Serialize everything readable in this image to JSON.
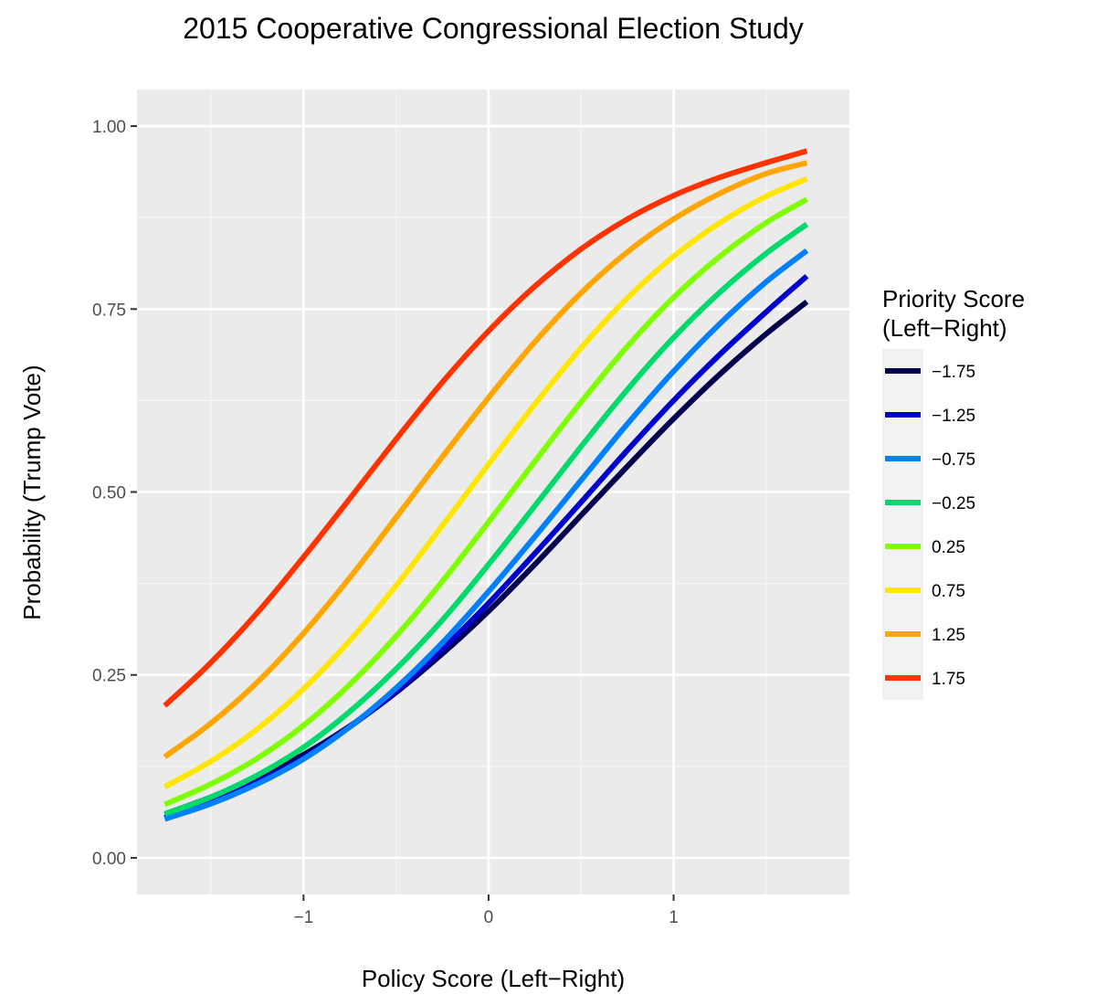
{
  "chart_data": {
    "type": "line",
    "title": "2015 Cooperative Congressional Election Study",
    "xlabel": "Policy Score (Left−Right)",
    "ylabel": "Probability (Trump Vote)",
    "xlim": [
      -1.9,
      1.95
    ],
    "ylim": [
      -0.05,
      1.05
    ],
    "x_ticks": [
      -1,
      0,
      1
    ],
    "x_tick_labels": [
      "−1",
      "0",
      "1"
    ],
    "y_ticks": [
      0,
      0.25,
      0.5,
      0.75,
      1.0
    ],
    "y_tick_labels": [
      "0.00",
      "0.25",
      "0.50",
      "0.75",
      "1.00"
    ],
    "grid": true,
    "legend": {
      "title": [
        "Priority Score",
        "(Left−Right)"
      ],
      "position": "right"
    },
    "x": [
      -1.75,
      -1.5,
      -1.25,
      -1.0,
      -0.75,
      -0.5,
      -0.25,
      0.0,
      0.25,
      0.5,
      0.75,
      1.0,
      1.25,
      1.5,
      1.72
    ],
    "series": [
      {
        "name": "−1.75",
        "color": "#00004d",
        "values": [
          0.06,
          0.083,
          0.11,
          0.141,
          0.18,
          0.226,
          0.279,
          0.337,
          0.401,
          0.468,
          0.535,
          0.6,
          0.661,
          0.716,
          0.76
        ]
      },
      {
        "name": "−1.25",
        "color": "#0000cc",
        "values": [
          0.055,
          0.077,
          0.104,
          0.137,
          0.179,
          0.228,
          0.285,
          0.348,
          0.416,
          0.486,
          0.557,
          0.625,
          0.688,
          0.746,
          0.795
        ]
      },
      {
        "name": "−0.75",
        "color": "#0080ff",
        "values": [
          0.053,
          0.074,
          0.101,
          0.135,
          0.179,
          0.232,
          0.294,
          0.364,
          0.439,
          0.516,
          0.593,
          0.665,
          0.73,
          0.787,
          0.83
        ]
      },
      {
        "name": "−0.25",
        "color": "#00d96b",
        "values": [
          0.06,
          0.083,
          0.113,
          0.151,
          0.2,
          0.258,
          0.325,
          0.401,
          0.481,
          0.562,
          0.64,
          0.711,
          0.773,
          0.826,
          0.866
        ]
      },
      {
        "name": "0.25",
        "color": "#80ff00",
        "values": [
          0.073,
          0.101,
          0.136,
          0.181,
          0.237,
          0.303,
          0.378,
          0.459,
          0.542,
          0.623,
          0.699,
          0.766,
          0.822,
          0.868,
          0.9
        ]
      },
      {
        "name": "0.75",
        "color": "#ffe600",
        "values": [
          0.097,
          0.132,
          0.176,
          0.231,
          0.297,
          0.372,
          0.454,
          0.538,
          0.62,
          0.697,
          0.765,
          0.822,
          0.868,
          0.904,
          0.928
        ]
      },
      {
        "name": "1.25",
        "color": "#ffa600",
        "values": [
          0.138,
          0.184,
          0.24,
          0.307,
          0.383,
          0.465,
          0.548,
          0.629,
          0.705,
          0.772,
          0.828,
          0.873,
          0.908,
          0.935,
          0.95
        ]
      },
      {
        "name": "1.75",
        "color": "#ff3300",
        "values": [
          0.208,
          0.267,
          0.335,
          0.411,
          0.491,
          0.572,
          0.65,
          0.72,
          0.781,
          0.832,
          0.873,
          0.905,
          0.93,
          0.95,
          0.966
        ]
      }
    ]
  }
}
